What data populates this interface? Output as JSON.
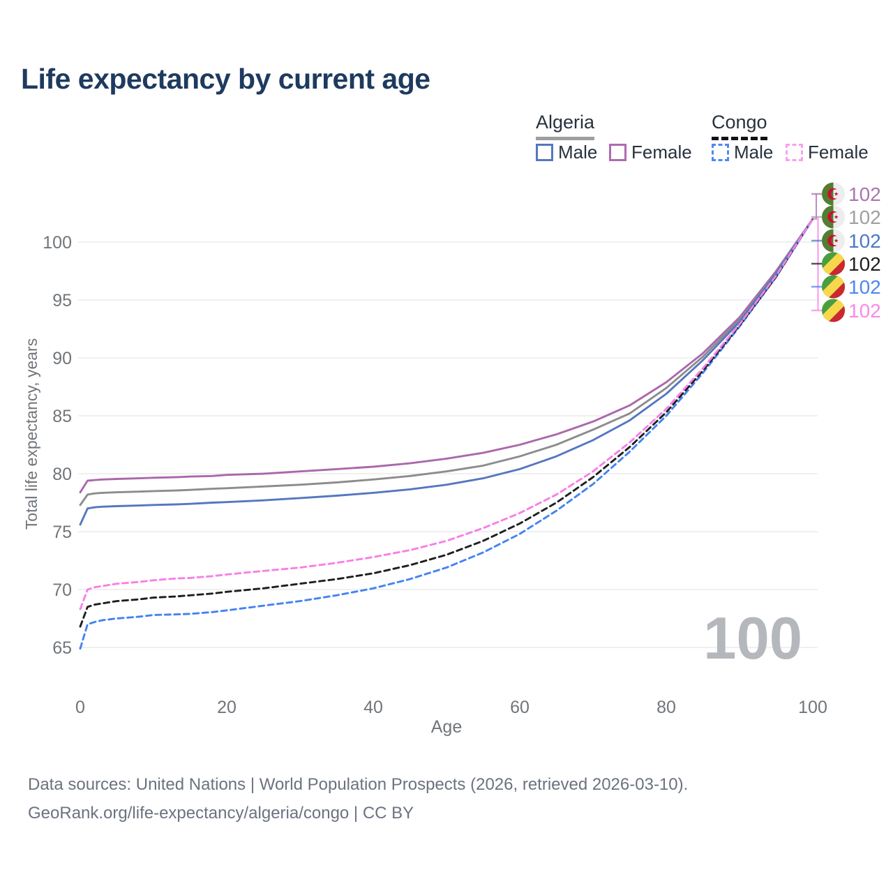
{
  "header": {
    "title": "Life expectancy by current age"
  },
  "legend": {
    "groups": [
      {
        "country": "Algeria",
        "line_style": "solid",
        "underline_color": "#9e9e9e",
        "items": [
          {
            "label": "Male",
            "color": "#5577c0"
          },
          {
            "label": "Female",
            "color": "#b06ab0"
          }
        ]
      },
      {
        "country": "Congo",
        "line_style": "dashed",
        "underline_color": "#111111",
        "items": [
          {
            "label": "Male",
            "color": "#4d87f5"
          },
          {
            "label": "Female",
            "color": "#f9a0ee"
          }
        ]
      }
    ]
  },
  "chart_data": {
    "type": "line",
    "title": "Life expectancy by current age",
    "xlabel": "Age",
    "ylabel": "Total life expectancy, years",
    "xlim": [
      0,
      100
    ],
    "ylim": [
      65,
      102
    ],
    "xticks": [
      0,
      20,
      40,
      60,
      80,
      100
    ],
    "yticks": [
      65,
      70,
      75,
      80,
      85,
      90,
      95,
      100
    ],
    "grid": "horizontal-only",
    "legend_position": "top-right",
    "watermark": "100",
    "series": [
      {
        "id": "algeria-female",
        "name": "Algeria Female",
        "style": "solid",
        "color": "#ab68ab",
        "x": [
          0,
          1,
          2,
          3,
          5,
          8,
          10,
          13,
          15,
          18,
          20,
          25,
          30,
          35,
          40,
          45,
          50,
          55,
          60,
          65,
          70,
          75,
          80,
          85,
          90,
          95,
          100
        ],
        "y": [
          78.4,
          79.4,
          79.45,
          79.5,
          79.55,
          79.6,
          79.65,
          79.7,
          79.75,
          79.8,
          79.9,
          80.0,
          80.2,
          80.4,
          80.6,
          80.9,
          81.3,
          81.8,
          82.5,
          83.4,
          84.5,
          85.9,
          87.9,
          90.4,
          93.5,
          97.5,
          102
        ]
      },
      {
        "id": "algeria-both",
        "name": "Algeria Both sexes",
        "style": "solid",
        "color": "#8c8c8c",
        "x": [
          0,
          1,
          2,
          3,
          5,
          8,
          10,
          13,
          15,
          18,
          20,
          25,
          30,
          35,
          40,
          45,
          50,
          55,
          60,
          65,
          70,
          75,
          80,
          85,
          90,
          95,
          100
        ],
        "y": [
          77.3,
          78.2,
          78.3,
          78.35,
          78.4,
          78.45,
          78.5,
          78.55,
          78.6,
          78.7,
          78.75,
          78.9,
          79.05,
          79.25,
          79.5,
          79.8,
          80.2,
          80.7,
          81.5,
          82.5,
          83.8,
          85.2,
          87.4,
          90.1,
          93.3,
          97.4,
          102
        ]
      },
      {
        "id": "algeria-male",
        "name": "Algeria Male",
        "style": "solid",
        "color": "#5577c0",
        "x": [
          0,
          1,
          2,
          3,
          5,
          8,
          10,
          13,
          15,
          18,
          20,
          25,
          30,
          35,
          40,
          45,
          50,
          55,
          60,
          65,
          70,
          75,
          80,
          85,
          90,
          95,
          100
        ],
        "y": [
          75.6,
          77.0,
          77.1,
          77.15,
          77.2,
          77.25,
          77.3,
          77.35,
          77.4,
          77.5,
          77.55,
          77.7,
          77.9,
          78.1,
          78.35,
          78.65,
          79.05,
          79.6,
          80.4,
          81.5,
          82.9,
          84.6,
          86.9,
          89.8,
          93.1,
          97.3,
          102
        ]
      },
      {
        "id": "congo-male",
        "name": "Congo Male",
        "style": "dashed",
        "color": "#4483f2",
        "x": [
          0,
          1,
          2,
          3,
          5,
          8,
          10,
          13,
          15,
          18,
          20,
          25,
          30,
          35,
          40,
          45,
          50,
          55,
          60,
          65,
          70,
          75,
          80,
          85,
          90,
          95,
          100
        ],
        "y": [
          64.9,
          67.0,
          67.2,
          67.35,
          67.5,
          67.65,
          67.8,
          67.85,
          67.9,
          68.05,
          68.2,
          68.6,
          69.0,
          69.5,
          70.1,
          70.9,
          71.9,
          73.2,
          74.8,
          76.8,
          79.1,
          81.9,
          85.0,
          88.7,
          92.7,
          97.0,
          102
        ]
      },
      {
        "id": "congo-both",
        "name": "Congo Both sexes",
        "style": "dashed",
        "color": "#1f1f1f",
        "x": [
          0,
          1,
          2,
          3,
          5,
          8,
          10,
          13,
          15,
          18,
          20,
          25,
          30,
          35,
          40,
          45,
          50,
          55,
          60,
          65,
          70,
          75,
          80,
          85,
          90,
          95,
          100
        ],
        "y": [
          66.8,
          68.5,
          68.7,
          68.8,
          69.0,
          69.15,
          69.3,
          69.4,
          69.5,
          69.65,
          69.8,
          70.1,
          70.5,
          70.9,
          71.4,
          72.1,
          73.0,
          74.2,
          75.7,
          77.5,
          79.7,
          82.3,
          85.3,
          88.9,
          92.8,
          97.0,
          102
        ]
      },
      {
        "id": "congo-female",
        "name": "Congo Female",
        "style": "dashed",
        "color": "#f87fe7",
        "x": [
          0,
          1,
          2,
          3,
          5,
          8,
          10,
          13,
          15,
          18,
          20,
          25,
          30,
          35,
          40,
          45,
          50,
          55,
          60,
          65,
          70,
          75,
          80,
          85,
          90,
          95,
          100
        ],
        "y": [
          68.3,
          70.0,
          70.2,
          70.3,
          70.5,
          70.65,
          70.8,
          70.95,
          71.0,
          71.15,
          71.3,
          71.6,
          71.9,
          72.3,
          72.8,
          73.4,
          74.2,
          75.3,
          76.6,
          78.2,
          80.2,
          82.7,
          85.6,
          89.1,
          92.9,
          97.1,
          102
        ]
      }
    ],
    "end_labels": [
      {
        "series": "algeria-female",
        "value": "102",
        "flag": "algeria",
        "color": "#ad74ad"
      },
      {
        "series": "algeria-both",
        "value": "102",
        "flag": "algeria",
        "color": "#a0a0a0"
      },
      {
        "series": "algeria-male",
        "value": "102",
        "flag": "algeria",
        "color": "#4a79c5"
      },
      {
        "series": "congo-both",
        "value": "102",
        "flag": "congo",
        "color": "#1f1f1f"
      },
      {
        "series": "congo-male",
        "value": "102",
        "flag": "congo",
        "color": "#4d87f0"
      },
      {
        "series": "congo-female",
        "value": "102",
        "flag": "congo",
        "color": "#f88ae8"
      }
    ]
  },
  "footer": {
    "line1": "Data sources: United Nations | World Population Prospects (2026, retrieved 2026-03-10).",
    "line2": "GeoRank.org/life-expectancy/algeria/congo | CC BY"
  }
}
